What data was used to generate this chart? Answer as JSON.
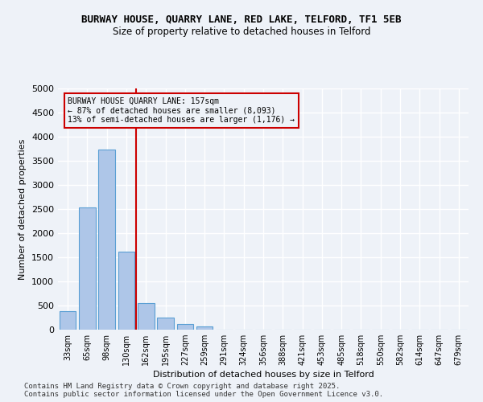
{
  "title_line1": "BURWAY HOUSE, QUARRY LANE, RED LAKE, TELFORD, TF1 5EB",
  "title_line2": "Size of property relative to detached houses in Telford",
  "xlabel": "Distribution of detached houses by size in Telford",
  "ylabel": "Number of detached properties",
  "categories": [
    "33sqm",
    "65sqm",
    "98sqm",
    "130sqm",
    "162sqm",
    "195sqm",
    "227sqm",
    "259sqm",
    "291sqm",
    "324sqm",
    "356sqm",
    "388sqm",
    "421sqm",
    "453sqm",
    "485sqm",
    "518sqm",
    "550sqm",
    "582sqm",
    "614sqm",
    "647sqm",
    "679sqm"
  ],
  "values": [
    390,
    2530,
    3730,
    1620,
    555,
    245,
    120,
    75,
    0,
    0,
    0,
    0,
    0,
    0,
    0,
    0,
    0,
    0,
    0,
    0,
    0
  ],
  "bar_color": "#aec6e8",
  "bar_edge_color": "#5a9fd4",
  "vline_index": 3.5,
  "vline_color": "#cc0000",
  "annotation_text": "BURWAY HOUSE QUARRY LANE: 157sqm\n← 87% of detached houses are smaller (8,093)\n13% of semi-detached houses are larger (1,176) →",
  "annotation_box_color": "#cc0000",
  "ylim": [
    0,
    5000
  ],
  "yticks": [
    0,
    500,
    1000,
    1500,
    2000,
    2500,
    3000,
    3500,
    4000,
    4500,
    5000
  ],
  "footer_line1": "Contains HM Land Registry data © Crown copyright and database right 2025.",
  "footer_line2": "Contains public sector information licensed under the Open Government Licence v3.0.",
  "background_color": "#eef2f8",
  "grid_color": "#ffffff"
}
